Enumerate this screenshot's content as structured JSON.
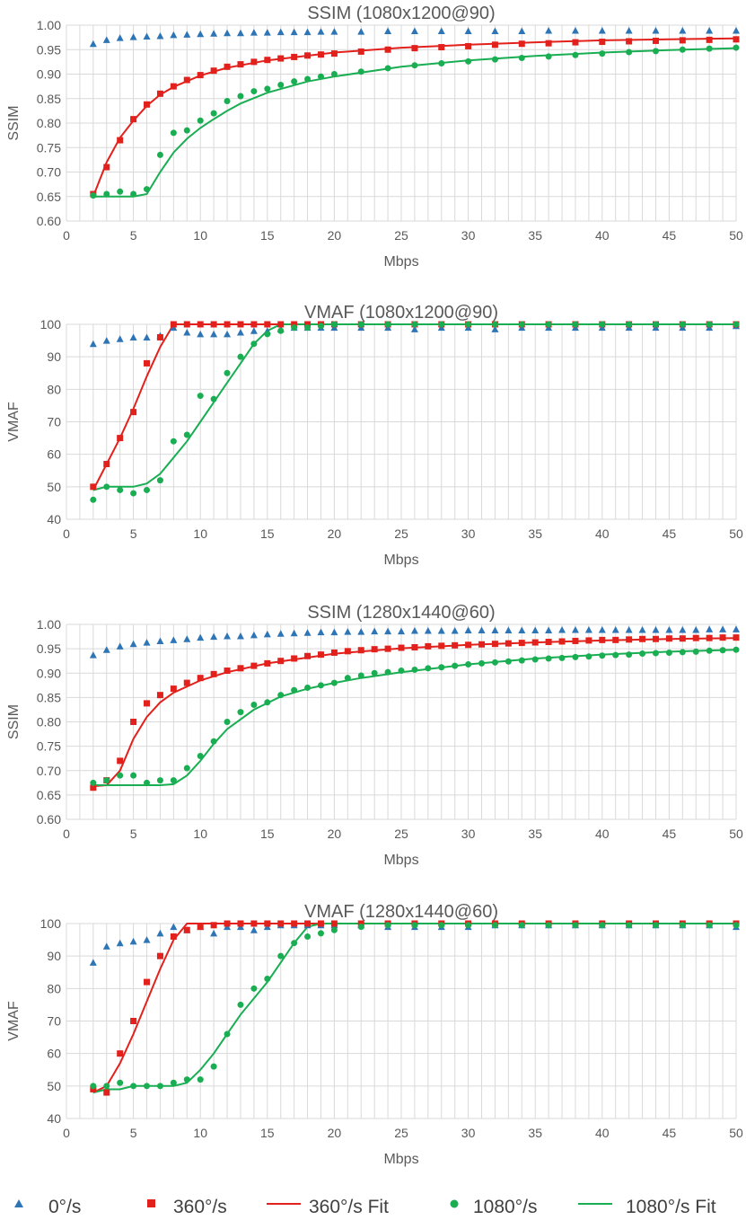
{
  "colors": {
    "s0": "#2e75b6",
    "s360": "#e3211c",
    "s1080": "#1aae53",
    "fit360": "#e3211c",
    "fit1080": "#1aae53"
  },
  "legend": {
    "s0": "0°/s",
    "s360": "360°/s",
    "fit360": "360°/s Fit",
    "s1080": "1080°/s",
    "fit1080": "1080°/s Fit"
  },
  "chart_data": [
    {
      "type": "scatter",
      "title": "SSIM (1080x1200@90)",
      "xlabel": "Mbps",
      "ylabel": "SSIM",
      "xlim": [
        0,
        50
      ],
      "ylim": [
        0.6,
        1.0
      ],
      "xticks": [
        "0",
        "5",
        "10",
        "15",
        "20",
        "25",
        "30",
        "35",
        "40",
        "45",
        "50"
      ],
      "yticks": [
        "0.60",
        "0.65",
        "0.70",
        "0.75",
        "0.80",
        "0.85",
        "0.90",
        "0.95",
        "1.00"
      ],
      "x": [
        2,
        3,
        4,
        5,
        6,
        7,
        8,
        9,
        10,
        11,
        12,
        13,
        14,
        15,
        16,
        17,
        18,
        19,
        20,
        22,
        24,
        26,
        28,
        30,
        32,
        34,
        36,
        38,
        40,
        42,
        44,
        46,
        48,
        50
      ],
      "series": [
        {
          "name": "0°/s",
          "key": "s0",
          "values": [
            0.962,
            0.97,
            0.974,
            0.976,
            0.977,
            0.978,
            0.98,
            0.981,
            0.982,
            0.983,
            0.984,
            0.984,
            0.985,
            0.985,
            0.986,
            0.986,
            0.986,
            0.987,
            0.987,
            0.987,
            0.988,
            0.988,
            0.988,
            0.988,
            0.988,
            0.988,
            0.989,
            0.989,
            0.989,
            0.989,
            0.989,
            0.989,
            0.989,
            0.989
          ]
        },
        {
          "name": "360°/s",
          "key": "s360",
          "values": [
            0.655,
            0.71,
            0.765,
            0.808,
            0.838,
            0.86,
            0.875,
            0.888,
            0.898,
            0.907,
            0.915,
            0.92,
            0.925,
            0.929,
            0.932,
            0.935,
            0.938,
            0.94,
            0.942,
            0.946,
            0.95,
            0.953,
            0.955,
            0.957,
            0.96,
            0.962,
            0.963,
            0.965,
            0.966,
            0.967,
            0.968,
            0.969,
            0.97,
            0.971
          ]
        },
        {
          "name": "1080°/s",
          "key": "s1080",
          "values": [
            0.652,
            0.655,
            0.66,
            0.655,
            0.665,
            0.735,
            0.78,
            0.785,
            0.805,
            0.82,
            0.845,
            0.855,
            0.865,
            0.87,
            0.878,
            0.885,
            0.89,
            0.895,
            0.9,
            0.905,
            0.912,
            0.918,
            0.922,
            0.926,
            0.93,
            0.933,
            0.936,
            0.939,
            0.942,
            0.945,
            0.947,
            0.95,
            0.952,
            0.954
          ]
        }
      ],
      "fits": [
        {
          "name": "360°/s Fit",
          "key": "fit360",
          "x": [
            2,
            3,
            4,
            5,
            6,
            7,
            8,
            10,
            12,
            15,
            20,
            25,
            30,
            35,
            40,
            45,
            50
          ],
          "values": [
            0.65,
            0.72,
            0.77,
            0.805,
            0.835,
            0.858,
            0.874,
            0.897,
            0.913,
            0.928,
            0.944,
            0.954,
            0.96,
            0.965,
            0.969,
            0.971,
            0.973
          ]
        },
        {
          "name": "1080°/s Fit",
          "key": "fit1080",
          "x": [
            2,
            3,
            4,
            5,
            6,
            7,
            8,
            9,
            10,
            11,
            12,
            13,
            15,
            18,
            20,
            25,
            30,
            35,
            40,
            45,
            50
          ],
          "values": [
            0.65,
            0.65,
            0.65,
            0.65,
            0.655,
            0.7,
            0.74,
            0.768,
            0.79,
            0.808,
            0.825,
            0.84,
            0.862,
            0.885,
            0.895,
            0.915,
            0.928,
            0.937,
            0.944,
            0.949,
            0.953
          ]
        }
      ]
    },
    {
      "type": "scatter",
      "title": "VMAF (1080x1200@90)",
      "xlabel": "Mbps",
      "ylabel": "VMAF",
      "xlim": [
        0,
        50
      ],
      "ylim": [
        40,
        100
      ],
      "xticks": [
        "0",
        "5",
        "10",
        "15",
        "20",
        "25",
        "30",
        "35",
        "40",
        "45",
        "50"
      ],
      "yticks": [
        "40",
        "50",
        "60",
        "70",
        "80",
        "90",
        "100"
      ],
      "x": [
        2,
        3,
        4,
        5,
        6,
        7,
        8,
        9,
        10,
        11,
        12,
        13,
        14,
        15,
        16,
        17,
        18,
        19,
        20,
        22,
        24,
        26,
        28,
        30,
        32,
        34,
        36,
        38,
        40,
        42,
        44,
        46,
        48,
        50
      ],
      "series": [
        {
          "name": "0°/s",
          "key": "s0",
          "values": [
            94,
            95,
            95.5,
            96,
            96,
            96.5,
            99,
            97.5,
            97,
            97,
            97,
            97.5,
            98,
            98,
            98.5,
            99,
            99,
            99,
            99,
            99,
            99,
            98.5,
            99,
            99,
            98.5,
            99,
            99,
            99,
            99,
            99,
            99,
            99,
            99,
            99.5
          ]
        },
        {
          "name": "360°/s",
          "key": "s360",
          "values": [
            50,
            57,
            65,
            73,
            88,
            96,
            100,
            100,
            100,
            100,
            100,
            100,
            100,
            100,
            100,
            100,
            100,
            100,
            100,
            100,
            100,
            100,
            100,
            100,
            100,
            100,
            100,
            100,
            100,
            100,
            100,
            100,
            100,
            100
          ]
        },
        {
          "name": "1080°/s",
          "key": "s1080",
          "values": [
            46,
            50,
            49,
            48,
            49,
            52,
            64,
            66,
            78,
            77,
            85,
            90,
            94,
            97,
            98,
            99,
            99,
            99.5,
            100,
            100,
            100,
            100,
            100,
            100,
            100,
            100,
            100,
            100,
            100,
            100,
            100,
            100,
            100,
            100
          ]
        }
      ],
      "fits": [
        {
          "name": "360°/s Fit",
          "key": "fit360",
          "x": [
            2,
            3,
            4,
            5,
            6,
            7,
            8,
            50
          ],
          "values": [
            49,
            57,
            65,
            74,
            84,
            93,
            100,
            100
          ]
        },
        {
          "name": "1080°/s Fit",
          "key": "fit1080",
          "x": [
            2,
            3,
            4,
            5,
            6,
            7,
            8,
            9,
            10,
            11,
            12,
            13,
            14,
            15,
            16,
            17,
            50
          ],
          "values": [
            49,
            50,
            50,
            50,
            51,
            54,
            59,
            64,
            70,
            76,
            82,
            88,
            94,
            98,
            100,
            100,
            100
          ]
        }
      ]
    },
    {
      "type": "scatter",
      "title": "SSIM (1280x1440@60)",
      "xlabel": "Mbps",
      "ylabel": "SSIM",
      "xlim": [
        0,
        50
      ],
      "ylim": [
        0.6,
        1.0
      ],
      "xticks": [
        "0",
        "5",
        "10",
        "15",
        "20",
        "25",
        "30",
        "35",
        "40",
        "45",
        "50"
      ],
      "yticks": [
        "0.60",
        "0.65",
        "0.70",
        "0.75",
        "0.80",
        "0.85",
        "0.90",
        "0.95",
        "1.00"
      ],
      "x": [
        2,
        3,
        4,
        5,
        6,
        7,
        8,
        9,
        10,
        11,
        12,
        13,
        14,
        15,
        16,
        17,
        18,
        19,
        20,
        21,
        22,
        23,
        24,
        25,
        26,
        27,
        28,
        29,
        30,
        31,
        32,
        33,
        34,
        35,
        36,
        37,
        38,
        39,
        40,
        41,
        42,
        43,
        44,
        45,
        46,
        47,
        48,
        49,
        50
      ],
      "series": [
        {
          "name": "0°/s",
          "key": "s0",
          "values": [
            0.937,
            0.948,
            0.955,
            0.96,
            0.963,
            0.966,
            0.968,
            0.97,
            0.973,
            0.975,
            0.976,
            0.976,
            0.978,
            0.98,
            0.981,
            0.982,
            0.983,
            0.984,
            0.984,
            0.985,
            0.985,
            0.986,
            0.986,
            0.986,
            0.987,
            0.987,
            0.987,
            0.987,
            0.988,
            0.988,
            0.988,
            0.988,
            0.988,
            0.988,
            0.988,
            0.989,
            0.989,
            0.989,
            0.989,
            0.989,
            0.989,
            0.989,
            0.989,
            0.989,
            0.989,
            0.989,
            0.99,
            0.99,
            0.99
          ]
        },
        {
          "name": "360°/s",
          "key": "s360",
          "values": [
            0.665,
            0.68,
            0.72,
            0.8,
            0.838,
            0.855,
            0.868,
            0.88,
            0.89,
            0.898,
            0.905,
            0.91,
            0.915,
            0.92,
            0.925,
            0.93,
            0.935,
            0.938,
            0.942,
            0.945,
            0.947,
            0.949,
            0.95,
            0.952,
            0.953,
            0.955,
            0.956,
            0.957,
            0.958,
            0.959,
            0.96,
            0.961,
            0.962,
            0.963,
            0.964,
            0.965,
            0.966,
            0.967,
            0.968,
            0.968,
            0.969,
            0.97,
            0.97,
            0.971,
            0.971,
            0.972,
            0.972,
            0.973,
            0.973
          ]
        },
        {
          "name": "1080°/s",
          "key": "s1080",
          "values": [
            0.675,
            0.68,
            0.69,
            0.69,
            0.675,
            0.68,
            0.68,
            0.705,
            0.73,
            0.76,
            0.8,
            0.82,
            0.835,
            0.84,
            0.855,
            0.865,
            0.87,
            0.875,
            0.88,
            0.89,
            0.895,
            0.9,
            0.902,
            0.905,
            0.907,
            0.91,
            0.912,
            0.915,
            0.918,
            0.92,
            0.922,
            0.924,
            0.926,
            0.928,
            0.93,
            0.931,
            0.933,
            0.934,
            0.936,
            0.937,
            0.938,
            0.94,
            0.941,
            0.942,
            0.943,
            0.944,
            0.946,
            0.947,
            0.948
          ]
        }
      ],
      "fits": [
        {
          "name": "360°/s Fit",
          "key": "fit360",
          "x": [
            2,
            3,
            4,
            5,
            6,
            7,
            8,
            10,
            12,
            15,
            20,
            25,
            30,
            35,
            40,
            45,
            50
          ],
          "values": [
            0.668,
            0.67,
            0.7,
            0.765,
            0.81,
            0.84,
            0.86,
            0.885,
            0.902,
            0.92,
            0.94,
            0.951,
            0.958,
            0.963,
            0.967,
            0.97,
            0.972
          ]
        },
        {
          "name": "1080°/s Fit",
          "key": "fit1080",
          "x": [
            2,
            3,
            4,
            5,
            6,
            7,
            8,
            9,
            10,
            11,
            12,
            14,
            16,
            18,
            20,
            22,
            25,
            30,
            35,
            40,
            45,
            50
          ],
          "values": [
            0.67,
            0.67,
            0.67,
            0.67,
            0.67,
            0.67,
            0.672,
            0.69,
            0.72,
            0.755,
            0.785,
            0.825,
            0.852,
            0.868,
            0.88,
            0.89,
            0.902,
            0.918,
            0.93,
            0.938,
            0.944,
            0.948
          ]
        }
      ]
    },
    {
      "type": "scatter",
      "title": "VMAF (1280x1440@60)",
      "xlabel": "Mbps",
      "ylabel": "VMAF",
      "xlim": [
        0,
        50
      ],
      "ylim": [
        40,
        100
      ],
      "xticks": [
        "0",
        "5",
        "10",
        "15",
        "20",
        "25",
        "30",
        "35",
        "40",
        "45",
        "50"
      ],
      "yticks": [
        "40",
        "50",
        "60",
        "70",
        "80",
        "90",
        "100"
      ],
      "x": [
        2,
        3,
        4,
        5,
        6,
        7,
        8,
        9,
        10,
        11,
        12,
        13,
        14,
        15,
        16,
        17,
        18,
        19,
        20,
        22,
        24,
        26,
        28,
        30,
        32,
        34,
        36,
        38,
        40,
        42,
        44,
        46,
        48,
        50
      ],
      "series": [
        {
          "name": "0°/s",
          "key": "s0",
          "values": [
            88,
            93,
            94,
            94.5,
            95,
            97,
            99,
            98,
            99,
            97,
            99,
            99,
            98,
            99,
            99.5,
            99.5,
            99.5,
            99.5,
            99.5,
            99.5,
            99,
            99,
            99,
            99,
            99.5,
            99.5,
            99.5,
            99.5,
            99.5,
            99.5,
            99.5,
            99.5,
            99.5,
            99
          ]
        },
        {
          "name": "360°/s",
          "key": "s360",
          "values": [
            49,
            48,
            60,
            70,
            82,
            90,
            96,
            98,
            99,
            99.5,
            100,
            100,
            100,
            100,
            100,
            100,
            100,
            100,
            100,
            100,
            100,
            100,
            100,
            100,
            100,
            100,
            100,
            100,
            100,
            100,
            100,
            100,
            100,
            100
          ]
        },
        {
          "name": "1080°/s",
          "key": "s1080",
          "values": [
            50,
            50,
            51,
            50,
            50,
            50,
            51,
            52,
            52,
            56,
            66,
            75,
            80,
            83,
            90,
            94,
            96,
            97,
            98,
            99,
            99.5,
            99.5,
            99.5,
            99.5,
            99.5,
            99.5,
            99.5,
            99.5,
            99.5,
            99.5,
            99.5,
            99.5,
            99.5,
            99.5
          ]
        }
      ],
      "fits": [
        {
          "name": "360°/s Fit",
          "key": "fit360",
          "x": [
            2,
            3,
            4,
            5,
            6,
            7,
            8,
            9,
            50
          ],
          "values": [
            48,
            50,
            57,
            66,
            76,
            86,
            95,
            100,
            100
          ]
        },
        {
          "name": "1080°/s Fit",
          "key": "fit1080",
          "x": [
            2,
            3,
            4,
            5,
            6,
            7,
            8,
            9,
            10,
            11,
            12,
            13,
            14,
            15,
            16,
            17,
            18,
            19,
            50
          ],
          "values": [
            48,
            49,
            49,
            50,
            50,
            50,
            50,
            51,
            55,
            60,
            66,
            72,
            77,
            82,
            88,
            94,
            99,
            100,
            100
          ]
        }
      ]
    }
  ]
}
